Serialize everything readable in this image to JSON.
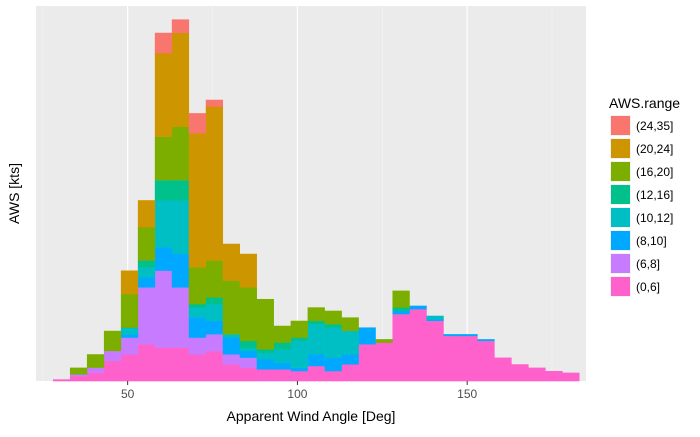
{
  "chart_data": {
    "type": "bar",
    "stacked": true,
    "title": "",
    "xlabel": "Apparent Wind Angle [Deg]",
    "ylabel": "AWS [kts]",
    "xlim": [
      23,
      185
    ],
    "ylim": [
      0,
      112
    ],
    "x_ticks": [
      "50",
      "100",
      "150"
    ],
    "x_tick_values": [
      50,
      100,
      150
    ],
    "y_ticks_shown": false,
    "bin_width": 5,
    "bin_starts": [
      28,
      33,
      38,
      43,
      48,
      53,
      58,
      63,
      68,
      73,
      78,
      83,
      88,
      93,
      98,
      103,
      108,
      113,
      118,
      123,
      128,
      133,
      138,
      143,
      148,
      153,
      158,
      163,
      168,
      173,
      178
    ],
    "legend": {
      "title": "AWS.range",
      "position": "right",
      "items": [
        "(24,35]",
        "(20,24]",
        "(16,20]",
        "(12,16]",
        "(10,12]",
        "(8,10]",
        "(6,8]",
        "(0,6]"
      ]
    },
    "series": [
      {
        "name": "(0,6]",
        "color": "#FF61CC",
        "values": [
          0.5,
          1.5,
          2.5,
          6,
          8,
          11,
          10,
          10,
          8,
          9,
          5,
          4,
          3.5,
          3.5,
          3,
          4.5,
          3,
          5,
          11,
          11.5,
          20,
          21.5,
          18,
          13.5,
          13.5,
          12,
          7,
          5,
          4,
          3,
          2.5
        ]
      },
      {
        "name": "(6,8]",
        "color": "#C77CFF",
        "values": [
          0,
          0.5,
          1.5,
          3,
          5,
          17,
          23,
          18,
          5,
          5,
          3,
          3,
          0,
          0,
          0,
          0,
          0,
          0,
          0,
          0,
          0,
          0,
          0,
          0,
          0,
          0,
          0,
          0,
          0,
          0,
          0
        ]
      },
      {
        "name": "(8,10]",
        "color": "#00A9FF",
        "values": [
          0,
          0,
          0,
          0,
          1,
          3,
          7,
          10,
          6,
          4,
          5,
          2,
          3,
          2,
          1,
          3.5,
          4,
          3,
          5,
          0,
          1,
          1,
          0.5,
          0.5,
          0.5,
          0.5,
          0,
          0,
          0,
          0,
          0
        ]
      },
      {
        "name": "(10,12]",
        "color": "#00BFC4",
        "values": [
          0,
          0,
          0,
          0,
          2,
          3,
          14,
          16,
          3,
          5,
          1,
          1,
          2,
          4,
          8,
          9,
          9,
          7,
          0,
          0,
          0,
          0,
          1,
          0,
          0,
          0,
          0,
          0,
          0,
          0,
          0
        ]
      },
      {
        "name": "(12,16]",
        "color": "#00C08B",
        "values": [
          0,
          0,
          0,
          0,
          0,
          2,
          6,
          6,
          1,
          2,
          0,
          2,
          1,
          2,
          1,
          1,
          1,
          0,
          0,
          0,
          1,
          0,
          0,
          0,
          0,
          0,
          0,
          0,
          0,
          0,
          0
        ]
      },
      {
        "name": "(16,20]",
        "color": "#7CAE00",
        "values": [
          0,
          2,
          4,
          6,
          10,
          10,
          13,
          16,
          11,
          11,
          16,
          16,
          15,
          5,
          5,
          4,
          4,
          4,
          0,
          1,
          5,
          0,
          0,
          0,
          0,
          0,
          0,
          0,
          0,
          0,
          0
        ]
      },
      {
        "name": "(20,24]",
        "color": "#CD9600",
        "values": [
          0,
          0,
          0,
          0,
          7,
          8,
          25,
          28,
          40,
          46,
          11,
          10,
          0,
          0,
          0,
          0,
          0,
          0,
          0,
          0,
          0,
          0,
          0,
          0,
          0,
          0,
          0,
          0,
          0,
          0,
          0
        ]
      },
      {
        "name": "(24,35]",
        "color": "#F8766D",
        "values": [
          0,
          0,
          0,
          0,
          0,
          0,
          6,
          4,
          6,
          2,
          0,
          0,
          0,
          0,
          0,
          0,
          0,
          0,
          0,
          0,
          0,
          0,
          0,
          0,
          0,
          0,
          0,
          0,
          0,
          0,
          0
        ]
      }
    ]
  }
}
